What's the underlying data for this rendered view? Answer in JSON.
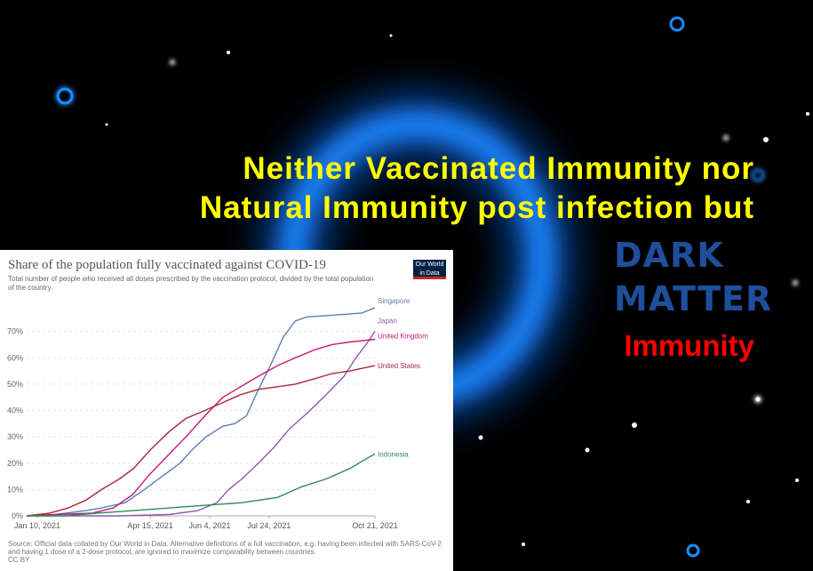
{
  "headline": {
    "line1": "Neither Vaccinated Immunity nor",
    "line2": "Natural Immunity post infection but"
  },
  "badge": {
    "line1": "DARK",
    "line2": "MATTER",
    "caption": "Immunity"
  },
  "colors": {
    "background": "#000000",
    "glow": "#1e88ff",
    "headline": "#ffff00",
    "dark_matter": "#1e4f9c",
    "immunity": "#ff0000"
  },
  "chart_data": {
    "type": "line",
    "title": "Share of the population fully vaccinated against COVID-19",
    "subtitle": "Total number of people who received all doses prescribed by the vaccination protocol, divided by the total population of the country.",
    "source": "Source: Official data collated by Our World in Data. Alternative definitions of a full vaccination, e.g. having been infected with SARS-CoV-2 and having 1 dose of a 2-dose protocol, are ignored to maximize comparability between countries.",
    "license": "CC BY",
    "logo": {
      "line1": "Our World",
      "line2": "in Data"
    },
    "x_ticks": [
      "Jan 10, 2021",
      "Apr 15, 2021",
      "Jun 4, 2021",
      "Jul 24, 2021",
      "Oct 21, 2021"
    ],
    "x_tick_dates": [
      "2021-01-10",
      "2021-04-15",
      "2021-06-04",
      "2021-07-24",
      "2021-10-21"
    ],
    "xlim": [
      "2021-01-01",
      "2021-10-21"
    ],
    "y_ticks": [
      "0%",
      "10%",
      "20%",
      "30%",
      "40%",
      "50%",
      "60%",
      "70%"
    ],
    "ylim": [
      0,
      80
    ],
    "grid": true,
    "series": [
      {
        "name": "Singapore",
        "color": "#5b7fb5",
        "points": [
          [
            "2021-01-01",
            0
          ],
          [
            "2021-01-25",
            0.5
          ],
          [
            "2021-02-20",
            2
          ],
          [
            "2021-03-05",
            3
          ],
          [
            "2021-03-25",
            5
          ],
          [
            "2021-04-10",
            10
          ],
          [
            "2021-04-25",
            15
          ],
          [
            "2021-05-10",
            20
          ],
          [
            "2021-05-20",
            25
          ],
          [
            "2021-06-01",
            30
          ],
          [
            "2021-06-15",
            34
          ],
          [
            "2021-06-25",
            35
          ],
          [
            "2021-07-05",
            38
          ],
          [
            "2021-07-15",
            48
          ],
          [
            "2021-07-25",
            57
          ],
          [
            "2021-08-05",
            68
          ],
          [
            "2021-08-15",
            74
          ],
          [
            "2021-08-25",
            75.5
          ],
          [
            "2021-09-10",
            76
          ],
          [
            "2021-09-25",
            76.5
          ],
          [
            "2021-10-10",
            77
          ],
          [
            "2021-10-21",
            79
          ]
        ]
      },
      {
        "name": "Japan",
        "color": "#8a5ab5",
        "points": [
          [
            "2021-01-01",
            0
          ],
          [
            "2021-03-20",
            0
          ],
          [
            "2021-05-01",
            0.5
          ],
          [
            "2021-05-25",
            2
          ],
          [
            "2021-06-10",
            5
          ],
          [
            "2021-06-20",
            10
          ],
          [
            "2021-07-01",
            14
          ],
          [
            "2021-07-15",
            20
          ],
          [
            "2021-07-28",
            26
          ],
          [
            "2021-08-10",
            33
          ],
          [
            "2021-08-25",
            39
          ],
          [
            "2021-09-10",
            46
          ],
          [
            "2021-09-25",
            53
          ],
          [
            "2021-10-05",
            60
          ],
          [
            "2021-10-15",
            66
          ],
          [
            "2021-10-21",
            70
          ]
        ]
      },
      {
        "name": "United Kingdom",
        "color": "#c5197d",
        "points": [
          [
            "2021-01-01",
            0
          ],
          [
            "2021-01-25",
            0.5
          ],
          [
            "2021-02-25",
            1
          ],
          [
            "2021-03-15",
            3
          ],
          [
            "2021-03-31",
            8
          ],
          [
            "2021-04-15",
            16
          ],
          [
            "2021-04-30",
            23
          ],
          [
            "2021-05-15",
            30
          ],
          [
            "2021-05-31",
            38
          ],
          [
            "2021-06-15",
            45
          ],
          [
            "2021-06-30",
            49
          ],
          [
            "2021-07-15",
            53
          ],
          [
            "2021-07-31",
            57
          ],
          [
            "2021-08-15",
            60
          ],
          [
            "2021-08-31",
            63
          ],
          [
            "2021-09-15",
            65
          ],
          [
            "2021-09-30",
            66
          ],
          [
            "2021-10-21",
            67
          ]
        ]
      },
      {
        "name": "United States",
        "color": "#a52a3a",
        "points": [
          [
            "2021-01-01",
            0
          ],
          [
            "2021-01-20",
            1
          ],
          [
            "2021-02-05",
            3
          ],
          [
            "2021-02-20",
            6
          ],
          [
            "2021-03-05",
            10
          ],
          [
            "2021-03-20",
            14
          ],
          [
            "2021-04-01",
            18
          ],
          [
            "2021-04-15",
            25
          ],
          [
            "2021-05-01",
            32
          ],
          [
            "2021-05-15",
            37
          ],
          [
            "2021-05-31",
            40
          ],
          [
            "2021-06-15",
            43
          ],
          [
            "2021-06-30",
            46
          ],
          [
            "2021-07-15",
            48
          ],
          [
            "2021-07-31",
            49
          ],
          [
            "2021-08-15",
            50
          ],
          [
            "2021-08-31",
            52
          ],
          [
            "2021-09-15",
            54
          ],
          [
            "2021-09-30",
            55
          ],
          [
            "2021-10-21",
            57
          ]
        ]
      },
      {
        "name": "Indonesia",
        "color": "#2e8b57",
        "points": [
          [
            "2021-01-01",
            0
          ],
          [
            "2021-02-01",
            0
          ],
          [
            "2021-03-01",
            1
          ],
          [
            "2021-04-01",
            2
          ],
          [
            "2021-05-01",
            3
          ],
          [
            "2021-06-01",
            4
          ],
          [
            "2021-07-01",
            5
          ],
          [
            "2021-07-31",
            7
          ],
          [
            "2021-08-20",
            11
          ],
          [
            "2021-09-10",
            14
          ],
          [
            "2021-09-30",
            18
          ],
          [
            "2021-10-15",
            22
          ],
          [
            "2021-10-21",
            23.5
          ]
        ]
      }
    ]
  }
}
